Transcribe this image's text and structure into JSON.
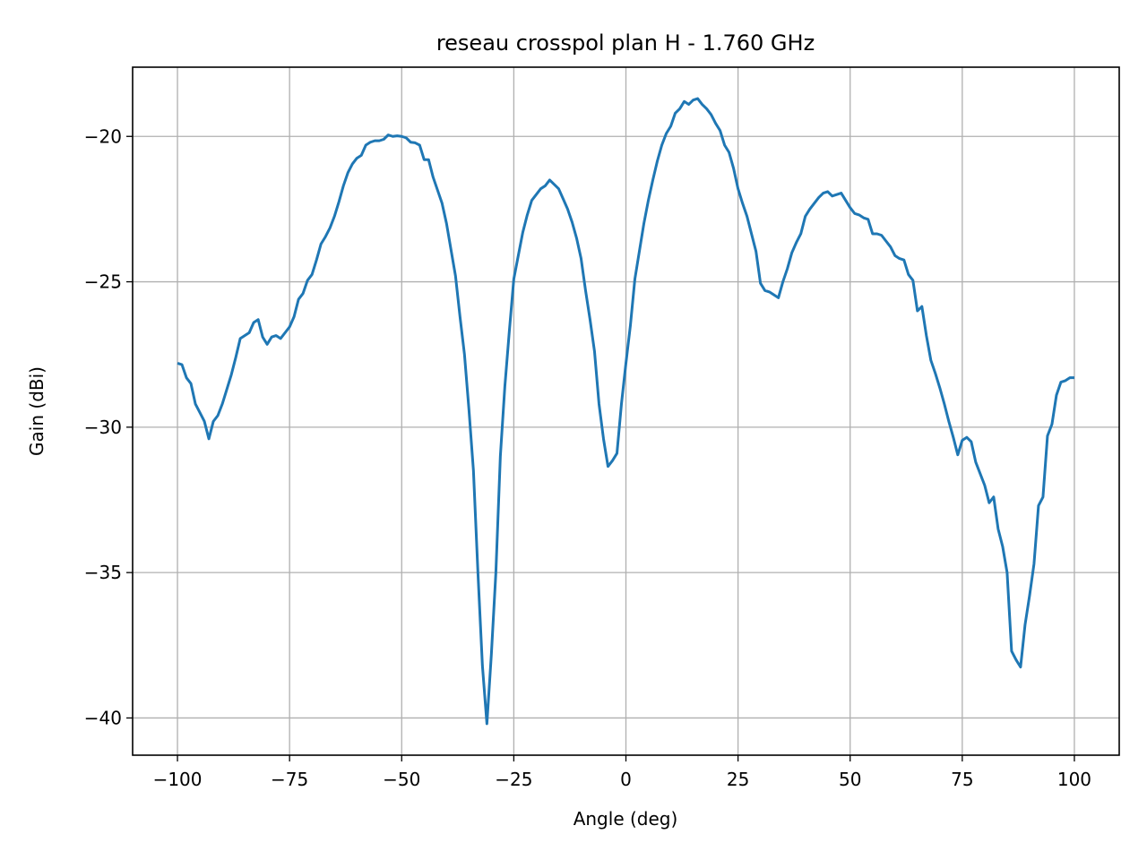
{
  "chart_data": {
    "type": "line",
    "title": "reseau crosspol plan H - 1.760 GHz",
    "x_label": "Angle (deg)",
    "y_label": "Gain (dBi)",
    "x": [
      -100,
      -99,
      -98,
      -97,
      -96,
      -95,
      -94,
      -93,
      -92,
      -91,
      -90,
      -89,
      -88,
      -87,
      -86,
      -85,
      -84,
      -83,
      -82,
      -81,
      -80,
      -79,
      -78,
      -77,
      -76,
      -75,
      -74,
      -73,
      -72,
      -71,
      -70,
      -69,
      -68,
      -67,
      -66,
      -65,
      -64,
      -63,
      -62,
      -61,
      -60,
      -59,
      -58,
      -57,
      -56,
      -55,
      -54,
      -53,
      -52,
      -51,
      -50,
      -49,
      -48,
      -47,
      -46,
      -45,
      -44,
      -43,
      -42,
      -41,
      -40,
      -39,
      -38,
      -37,
      -36,
      -35,
      -34,
      -33,
      -32,
      -31,
      -30,
      -29,
      -28,
      -27,
      -26,
      -25,
      -24,
      -23,
      -22,
      -21,
      -20,
      -19,
      -18,
      -17,
      -16,
      -15,
      -14,
      -13,
      -12,
      -11,
      -10,
      -9,
      -8,
      -7,
      -6,
      -5,
      -4,
      -3,
      -2,
      -1,
      0,
      1,
      2,
      3,
      4,
      5,
      6,
      7,
      8,
      9,
      10,
      11,
      12,
      13,
      14,
      15,
      16,
      17,
      18,
      19,
      20,
      21,
      22,
      23,
      24,
      25,
      26,
      27,
      28,
      29,
      30,
      31,
      32,
      33,
      34,
      35,
      36,
      37,
      38,
      39,
      40,
      41,
      42,
      43,
      44,
      45,
      46,
      47,
      48,
      49,
      50,
      51,
      52,
      53,
      54,
      55,
      56,
      57,
      58,
      59,
      60,
      61,
      62,
      63,
      64,
      65,
      66,
      67,
      68,
      69,
      70,
      71,
      72,
      73,
      74,
      75,
      76,
      77,
      78,
      79,
      80,
      81,
      82,
      83,
      84,
      85,
      86,
      87,
      88,
      89,
      90,
      91,
      92,
      93,
      94,
      95,
      96,
      97,
      98,
      99,
      100
    ],
    "series": [
      {
        "color": "#1f77b4",
        "values": [
          -27.8,
          -27.85,
          -28.3,
          -28.5,
          -29.2,
          -29.5,
          -29.8,
          -30.4,
          -29.8,
          -29.6,
          -29.2,
          -28.7,
          -28.2,
          -27.6,
          -26.95,
          -26.85,
          -26.75,
          -26.4,
          -26.3,
          -26.9,
          -27.15,
          -26.9,
          -26.85,
          -26.95,
          -26.75,
          -26.55,
          -26.2,
          -25.6,
          -25.4,
          -24.95,
          -24.75,
          -24.25,
          -23.7,
          -23.45,
          -23.15,
          -22.75,
          -22.25,
          -21.7,
          -21.25,
          -20.95,
          -20.75,
          -20.65,
          -20.3,
          -20.2,
          -20.15,
          -20.15,
          -20.1,
          -19.95,
          -20.0,
          -19.98,
          -20.0,
          -20.05,
          -20.2,
          -20.22,
          -20.3,
          -20.8,
          -20.8,
          -21.4,
          -21.85,
          -22.3,
          -23.0,
          -23.9,
          -24.8,
          -26.2,
          -27.5,
          -29.4,
          -31.5,
          -35.0,
          -38.2,
          -40.2,
          -37.8,
          -35.0,
          -31.0,
          -28.6,
          -26.7,
          -24.9,
          -24.1,
          -23.3,
          -22.7,
          -22.2,
          -22.0,
          -21.8,
          -21.7,
          -21.5,
          -21.65,
          -21.8,
          -22.15,
          -22.5,
          -22.95,
          -23.5,
          -24.2,
          -25.3,
          -26.3,
          -27.4,
          -29.2,
          -30.4,
          -31.35,
          -31.15,
          -30.9,
          -29.2,
          -27.8,
          -26.5,
          -24.9,
          -23.95,
          -23.0,
          -22.2,
          -21.5,
          -20.85,
          -20.3,
          -19.9,
          -19.65,
          -19.2,
          -19.05,
          -18.8,
          -18.9,
          -18.75,
          -18.7,
          -18.9,
          -19.05,
          -19.25,
          -19.55,
          -19.8,
          -20.3,
          -20.55,
          -21.1,
          -21.8,
          -22.3,
          -22.75,
          -23.35,
          -23.95,
          -25.05,
          -25.3,
          -25.35,
          -25.45,
          -25.55,
          -25.0,
          -24.55,
          -24.0,
          -23.65,
          -23.35,
          -22.75,
          -22.5,
          -22.3,
          -22.1,
          -21.95,
          -21.9,
          -22.05,
          -22.0,
          -21.95,
          -22.2,
          -22.45,
          -22.65,
          -22.7,
          -22.8,
          -22.85,
          -23.35,
          -23.35,
          -23.4,
          -23.6,
          -23.8,
          -24.1,
          -24.2,
          -24.25,
          -24.75,
          -24.95,
          -26.0,
          -25.85,
          -26.85,
          -27.7,
          -28.15,
          -28.65,
          -29.2,
          -29.8,
          -30.35,
          -30.95,
          -30.45,
          -30.35,
          -30.5,
          -31.2,
          -31.6,
          -32.0,
          -32.6,
          -32.4,
          -33.5,
          -34.1,
          -35.0,
          -37.7,
          -38.0,
          -38.25,
          -36.8,
          -35.8,
          -34.7,
          -32.7,
          -32.4,
          -30.3,
          -29.9,
          -28.9,
          -28.45,
          -28.4,
          -28.3,
          -28.3
        ]
      }
    ],
    "xlim": [
      -110,
      110
    ],
    "ylim": [
      -41.28,
      -17.62
    ],
    "xticks": [
      {
        "value": -100,
        "label": "−100"
      },
      {
        "value": -75,
        "label": "−75"
      },
      {
        "value": -50,
        "label": "−50"
      },
      {
        "value": -25,
        "label": "−25"
      },
      0,
      25,
      50,
      75,
      100
    ],
    "yticks": [
      {
        "value": -40,
        "label": "−40"
      },
      {
        "value": -35,
        "label": "−35"
      },
      {
        "value": -30,
        "label": "−30"
      },
      {
        "value": -25,
        "label": "−25"
      },
      {
        "value": -20,
        "label": "−20"
      }
    ],
    "grid": true
  }
}
